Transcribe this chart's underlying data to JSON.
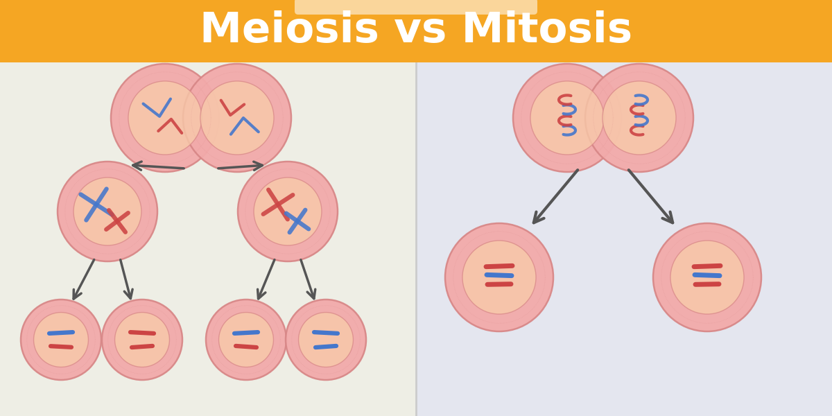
{
  "title": "Meiosis vs Mitosis",
  "title_bg_color": "#F5A623",
  "title_text_color": "#FFFFFF",
  "left_bg_color": "#EEEEE5",
  "right_bg_color": "#E4E6EF",
  "cell_outer_color": "#F2AAAA",
  "cell_inner_color": "#F8CCAA",
  "cell_border_color": "#D88888",
  "arrow_color": "#555555",
  "blue_chrom": "#4477CC",
  "red_chrom": "#CC4444",
  "title_fontsize": 44,
  "pill_color": "#FFFFFF"
}
